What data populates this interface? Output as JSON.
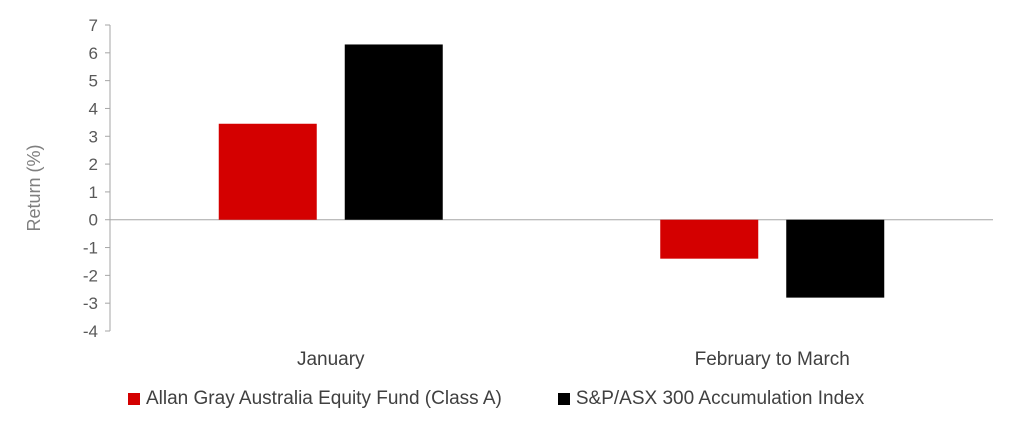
{
  "chart_data": {
    "type": "bar",
    "categories": [
      "January",
      "February to March"
    ],
    "series": [
      {
        "name": "Allan Gray Australia Equity Fund (Class A)",
        "values": [
          3.45,
          -1.4
        ],
        "color": "#d40000"
      },
      {
        "name": "S&P/ASX 300 Accumulation Index",
        "values": [
          6.3,
          -2.8
        ],
        "color": "#000000"
      }
    ],
    "ylabel": "Return (%)",
    "ylim": [
      -4,
      7
    ],
    "yticks": [
      7,
      6,
      5,
      4,
      3,
      2,
      1,
      0,
      -1,
      -2,
      -3,
      -4
    ],
    "grid": false,
    "legend_position": "bottom"
  }
}
